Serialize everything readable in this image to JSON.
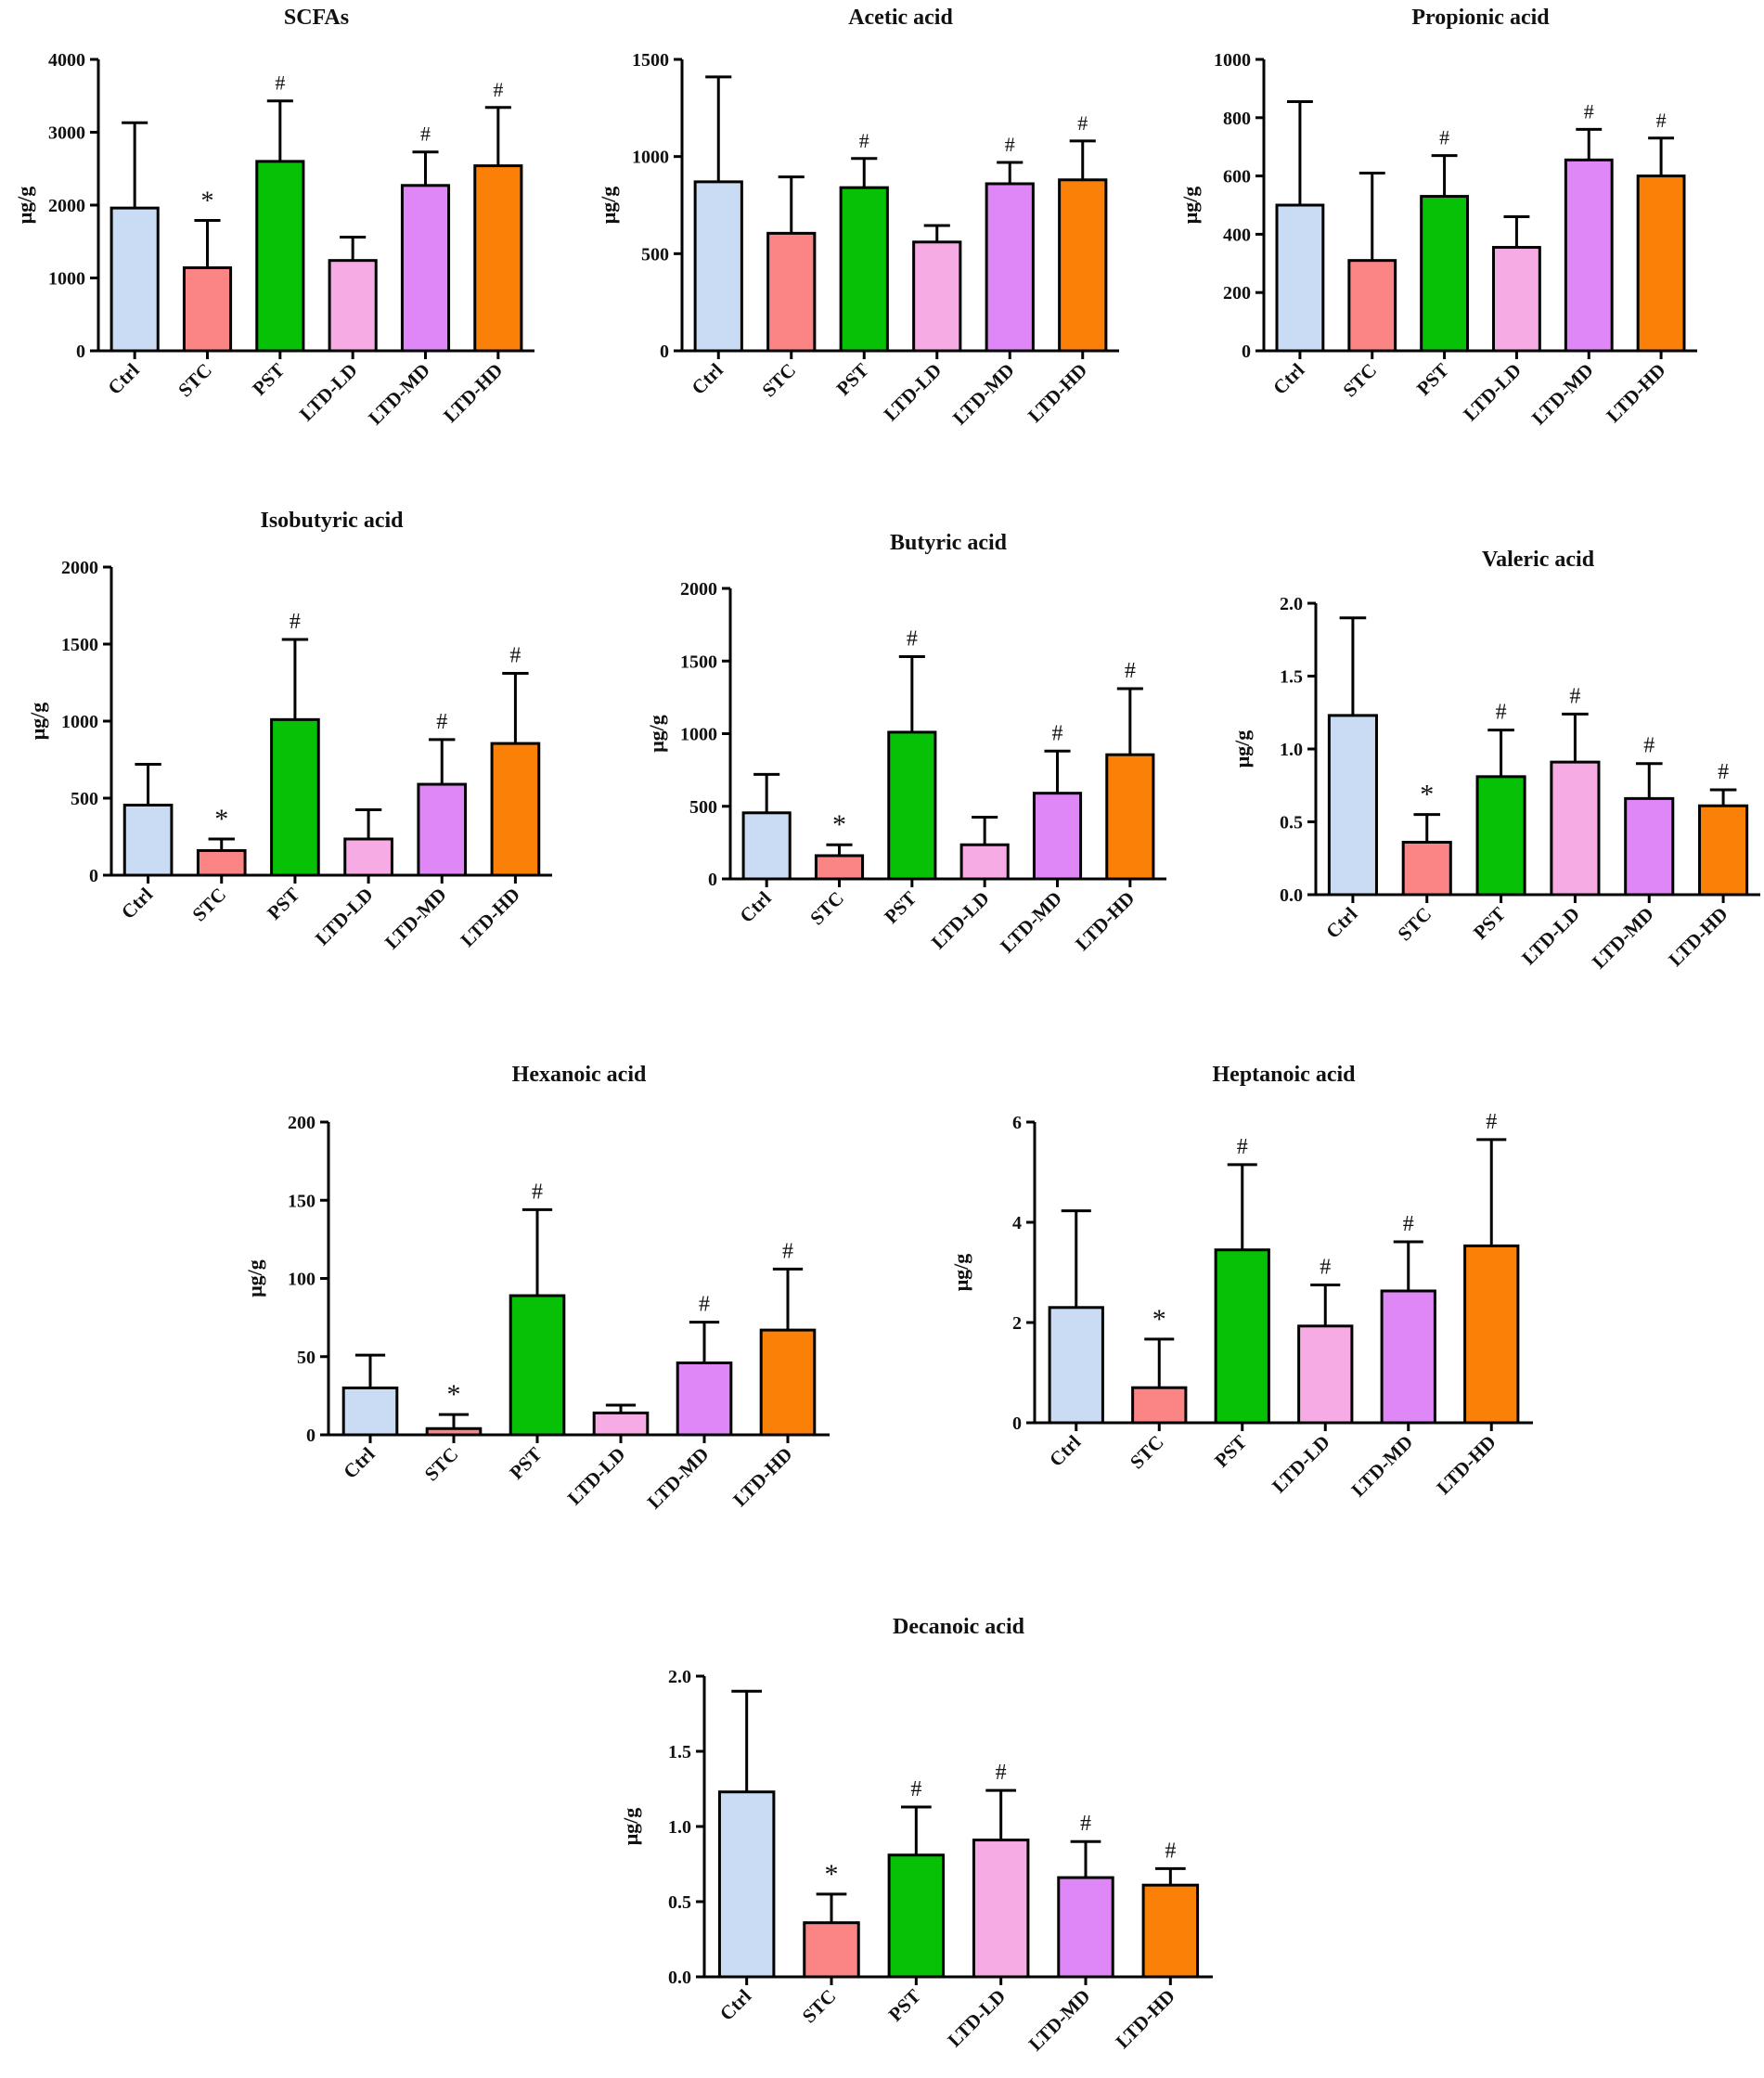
{
  "colors": [
    "#c9dcf4",
    "#fb8484",
    "#07c107",
    "#f7abe5",
    "#df87f7",
    "#fb8007"
  ],
  "chart_data": [
    {
      "type": "bar",
      "title": "SCFAs",
      "ylabel": "μg/g",
      "categories": [
        "Ctrl",
        "STC",
        "PST",
        "LTD-LD",
        "LTD-MD",
        "LTD-HD"
      ],
      "values": [
        1960,
        1140,
        2600,
        1240,
        2270,
        2540
      ],
      "errors": [
        1170,
        650,
        830,
        320,
        460,
        800
      ],
      "significance": [
        "",
        "*",
        "#",
        "",
        "#",
        "#"
      ],
      "ylim": [
        0,
        4000
      ],
      "yticks": [
        0,
        1000,
        2000,
        3000,
        4000
      ]
    },
    {
      "type": "bar",
      "title": "Acetic acid",
      "ylabel": "μg/g",
      "categories": [
        "Ctrl",
        "STC",
        "PST",
        "LTD-LD",
        "LTD-MD",
        "LTD-HD"
      ],
      "values": [
        870,
        605,
        840,
        560,
        860,
        880
      ],
      "errors": [
        540,
        290,
        150,
        85,
        110,
        200
      ],
      "significance": [
        "",
        "",
        "#",
        "",
        "#",
        "#"
      ],
      "ylim": [
        0,
        1500
      ],
      "yticks": [
        0,
        500,
        1000,
        1500
      ]
    },
    {
      "type": "bar",
      "title": "Propionic acid",
      "ylabel": "μg/g",
      "categories": [
        "Ctrl",
        "STC",
        "PST",
        "LTD-LD",
        "LTD-MD",
        "LTD-HD"
      ],
      "values": [
        500,
        310,
        530,
        355,
        655,
        600
      ],
      "errors": [
        355,
        300,
        140,
        105,
        105,
        130
      ],
      "significance": [
        "",
        "",
        "#",
        "",
        "#",
        "#"
      ],
      "ylim": [
        0,
        1000
      ],
      "yticks": [
        0,
        200,
        400,
        600,
        800,
        1000
      ]
    },
    {
      "type": "bar",
      "title": "Isobutyric acid",
      "ylabel": "μg/g",
      "categories": [
        "Ctrl",
        "STC",
        "PST",
        "LTD-LD",
        "LTD-MD",
        "LTD-HD"
      ],
      "values": [
        455,
        160,
        1010,
        235,
        590,
        855
      ],
      "errors": [
        265,
        75,
        520,
        190,
        290,
        455
      ],
      "significance": [
        "",
        "*",
        "#",
        "",
        "#",
        "#"
      ],
      "ylim": [
        0,
        2000
      ],
      "yticks": [
        0,
        500,
        1000,
        1500,
        2000
      ]
    },
    {
      "type": "bar",
      "title": "Butyric acid",
      "ylabel": "μg/g",
      "categories": [
        "Ctrl",
        "STC",
        "PST",
        "LTD-LD",
        "LTD-MD",
        "LTD-HD"
      ],
      "values": [
        455,
        160,
        1010,
        235,
        590,
        855
      ],
      "errors": [
        265,
        75,
        520,
        190,
        290,
        455
      ],
      "significance": [
        "",
        "*",
        "#",
        "",
        "#",
        "#"
      ],
      "ylim": [
        0,
        2000
      ],
      "yticks": [
        0,
        500,
        1000,
        1500,
        2000
      ]
    },
    {
      "type": "bar",
      "title": "Valeric acid",
      "ylabel": "μg/g",
      "categories": [
        "Ctrl",
        "STC",
        "PST",
        "LTD-LD",
        "LTD-MD",
        "LTD-HD"
      ],
      "values": [
        1.23,
        0.36,
        0.81,
        0.91,
        0.66,
        0.61
      ],
      "errors": [
        0.67,
        0.19,
        0.32,
        0.33,
        0.24,
        0.11
      ],
      "significance": [
        "",
        "*",
        "#",
        "#",
        "#",
        "#"
      ],
      "ylim": [
        0,
        2.0
      ],
      "yticks": [
        "0.0",
        "0.5",
        "1.0",
        "1.5",
        "2.0"
      ]
    },
    {
      "type": "bar",
      "title": "Hexanoic acid",
      "ylabel": "μg/g",
      "categories": [
        "Ctrl",
        "STC",
        "PST",
        "LTD-LD",
        "LTD-MD",
        "LTD-HD"
      ],
      "values": [
        30,
        4,
        89,
        14,
        46,
        67
      ],
      "errors": [
        21,
        9,
        55,
        5,
        26,
        39
      ],
      "significance": [
        "",
        "*",
        "#",
        "",
        "#",
        "#"
      ],
      "ylim": [
        0,
        200
      ],
      "yticks": [
        0,
        50,
        100,
        150,
        200
      ]
    },
    {
      "type": "bar",
      "title": "Heptanoic acid",
      "ylabel": "μg/g",
      "categories": [
        "Ctrl",
        "STC",
        "PST",
        "LTD-LD",
        "LTD-MD",
        "LTD-HD"
      ],
      "values": [
        2.3,
        0.7,
        3.45,
        1.93,
        2.63,
        3.53
      ],
      "errors": [
        1.93,
        0.97,
        1.7,
        0.82,
        0.98,
        2.12
      ],
      "significance": [
        "",
        "*",
        "#",
        "#",
        "#",
        "#"
      ],
      "ylim": [
        0,
        6
      ],
      "yticks": [
        0,
        2,
        4,
        6
      ]
    },
    {
      "type": "bar",
      "title": "Decanoic acid",
      "ylabel": "μg/g",
      "categories": [
        "Ctrl",
        "STC",
        "PST",
        "LTD-LD",
        "LTD-MD",
        "LTD-HD"
      ],
      "values": [
        1.23,
        0.36,
        0.81,
        0.91,
        0.66,
        0.61
      ],
      "errors": [
        0.67,
        0.19,
        0.32,
        0.33,
        0.24,
        0.11
      ],
      "significance": [
        "",
        "*",
        "#",
        "#",
        "#",
        "#"
      ],
      "ylim": [
        0,
        2.0
      ],
      "yticks": [
        "0.0",
        "0.5",
        "1.0",
        "1.5",
        "2.0"
      ]
    }
  ]
}
